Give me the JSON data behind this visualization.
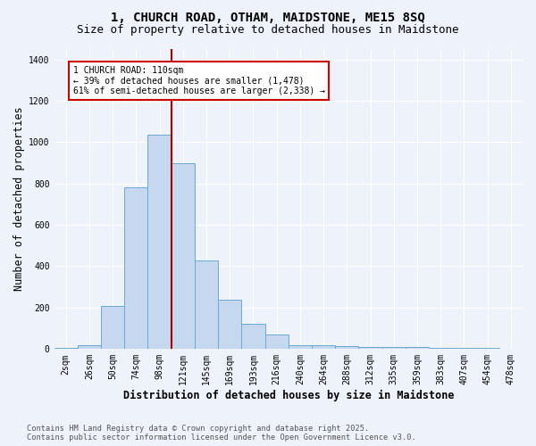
{
  "title": "1, CHURCH ROAD, OTHAM, MAIDSTONE, ME15 8SQ",
  "subtitle": "Size of property relative to detached houses in Maidstone",
  "xlabel": "Distribution of detached houses by size in Maidstone",
  "ylabel": "Number of detached properties",
  "footer_line1": "Contains HM Land Registry data © Crown copyright and database right 2025.",
  "footer_line2": "Contains public sector information licensed under the Open Government Licence v3.0.",
  "categories": [
    "2sqm",
    "26sqm",
    "50sqm",
    "74sqm",
    "98sqm",
    "121sqm",
    "145sqm",
    "169sqm",
    "193sqm",
    "216sqm",
    "240sqm",
    "264sqm",
    "288sqm",
    "312sqm",
    "335sqm",
    "359sqm",
    "383sqm",
    "407sqm",
    "454sqm",
    "478sqm"
  ],
  "values": [
    5,
    20,
    210,
    780,
    1035,
    900,
    430,
    240,
    120,
    70,
    20,
    20,
    15,
    10,
    10,
    8,
    5,
    5,
    5,
    2
  ],
  "bar_color": "#c5d8f0",
  "bar_edge_color": "#6aaad4",
  "vline_x": 4.5,
  "vline_color": "#aa0000",
  "annotation_text": "1 CHURCH ROAD: 110sqm\n← 39% of detached houses are smaller (1,478)\n61% of semi-detached houses are larger (2,338) →",
  "annotation_box_color": "#ffffff",
  "annotation_box_edge": "#cc0000",
  "ylim": [
    0,
    1450
  ],
  "yticks": [
    0,
    200,
    400,
    600,
    800,
    1000,
    1200,
    1400
  ],
  "background_color": "#eef2fb",
  "plot_bg_color": "#eef2fb",
  "grid_color": "#ffffff",
  "title_fontsize": 10,
  "subtitle_fontsize": 9,
  "axis_label_fontsize": 8.5,
  "tick_fontsize": 7,
  "footer_fontsize": 6.2
}
